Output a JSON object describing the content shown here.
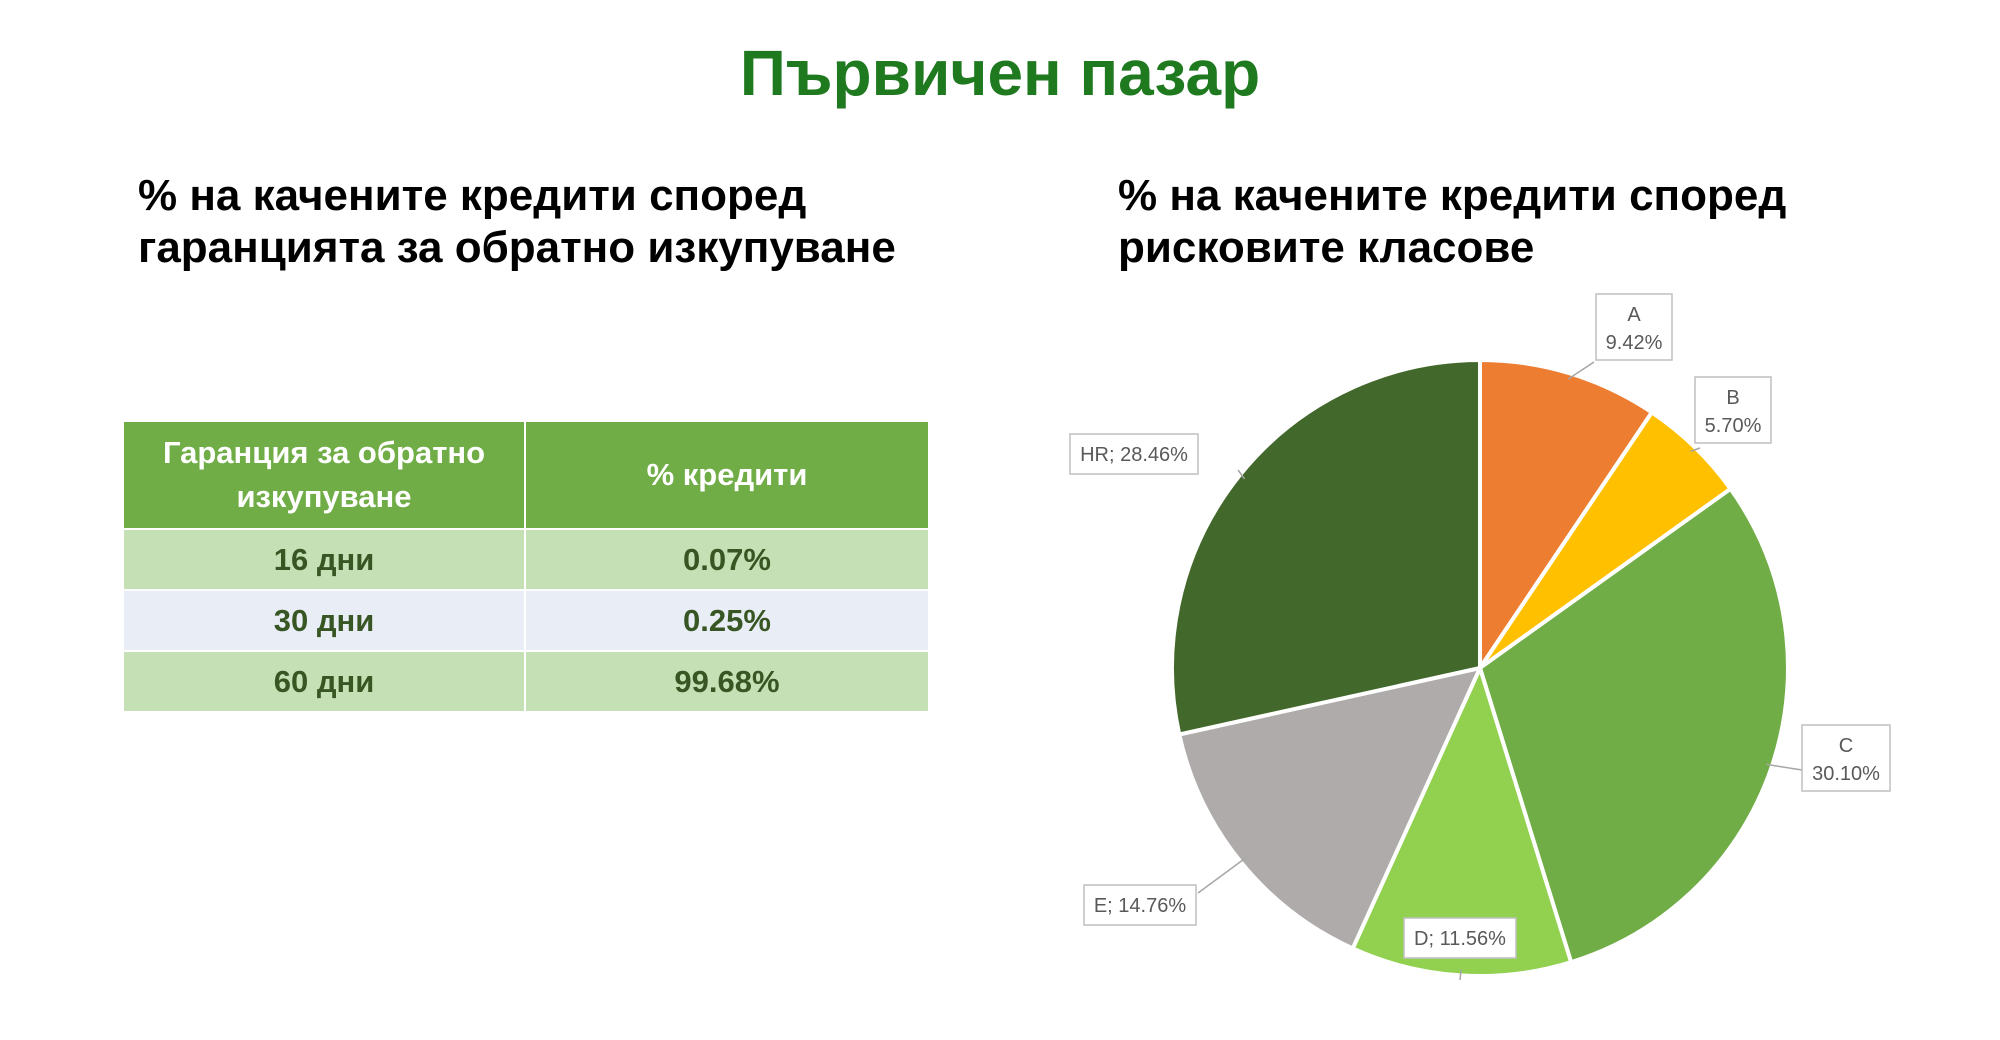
{
  "page": {
    "title": "Първичен пазар",
    "left_subtitle_line1": "% на качените кредити според",
    "left_subtitle_line2": "гаранцията за обратно изкупуване",
    "right_subtitle_line1": "% на качените кредити според",
    "right_subtitle_line2": "рисковите класове"
  },
  "table": {
    "headers": [
      "Гаранция за обратно изкупуване",
      "% кредити"
    ],
    "rows": [
      [
        "16 дни",
        "0.07%"
      ],
      [
        "30 дни",
        "0.25%"
      ],
      [
        "60 дни",
        "99.68%"
      ]
    ]
  },
  "chart_data": {
    "type": "pie",
    "title": "% на качените кредити според рисковите класове",
    "slices": [
      {
        "label": "A",
        "value": 9.42,
        "display": "9.42%",
        "color": "#ed7d31",
        "label_style": "stacked"
      },
      {
        "label": "B",
        "value": 5.7,
        "display": "5.70%",
        "color": "#ffc000",
        "label_style": "stacked"
      },
      {
        "label": "C",
        "value": 30.1,
        "display": "30.10%",
        "color": "#70ad47",
        "label_style": "stacked"
      },
      {
        "label": "D",
        "value": 11.56,
        "display": "11.56%",
        "color": "#92d050",
        "label_style": "inline"
      },
      {
        "label": "E",
        "value": 14.76,
        "display": "14.76%",
        "color": "#afabab",
        "label_style": "inline"
      },
      {
        "label": "HR",
        "value": 28.46,
        "display": "28.46%",
        "color": "#43682b",
        "label_style": "inline"
      }
    ],
    "start_angle_deg": 0,
    "direction": "clockwise",
    "legend": "none",
    "data_label_separator": "; "
  }
}
